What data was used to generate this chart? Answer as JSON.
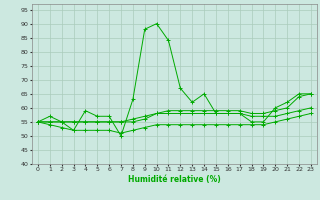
{
  "title": "",
  "xlabel": "Humidité relative (%)",
  "ylabel": "",
  "bg_color": "#cce8e0",
  "grid_color": "#aaccbb",
  "line_color": "#00aa00",
  "ylim": [
    40,
    97
  ],
  "xlim": [
    -0.5,
    23.5
  ],
  "yticks": [
    40,
    45,
    50,
    55,
    60,
    65,
    70,
    75,
    80,
    85,
    90,
    95
  ],
  "xticks": [
    0,
    1,
    2,
    3,
    4,
    5,
    6,
    7,
    8,
    9,
    10,
    11,
    12,
    13,
    14,
    15,
    16,
    17,
    18,
    19,
    20,
    21,
    22,
    23
  ],
  "series": [
    [
      55,
      57,
      55,
      52,
      59,
      57,
      57,
      50,
      63,
      88,
      90,
      84,
      67,
      62,
      65,
      58,
      58,
      58,
      55,
      55,
      60,
      62,
      65,
      65
    ],
    [
      55,
      54,
      53,
      52,
      52,
      52,
      52,
      51,
      52,
      53,
      54,
      54,
      54,
      54,
      54,
      54,
      54,
      54,
      54,
      54,
      55,
      56,
      57,
      58
    ],
    [
      55,
      55,
      55,
      55,
      55,
      55,
      55,
      55,
      56,
      57,
      58,
      58,
      58,
      58,
      58,
      58,
      58,
      58,
      57,
      57,
      57,
      58,
      59,
      60
    ],
    [
      55,
      55,
      55,
      55,
      55,
      55,
      55,
      55,
      55,
      56,
      58,
      59,
      59,
      59,
      59,
      59,
      59,
      59,
      58,
      58,
      59,
      60,
      64,
      65
    ]
  ]
}
